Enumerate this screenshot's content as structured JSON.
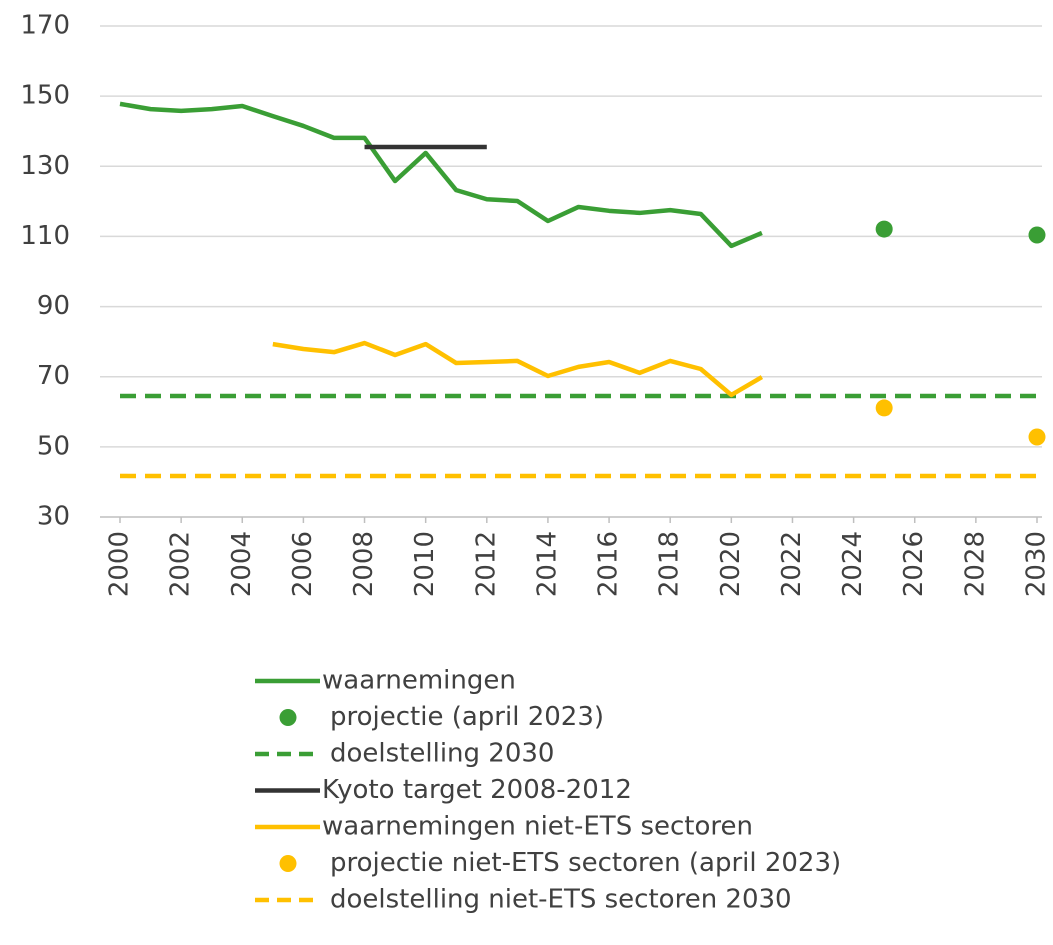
{
  "chart_data": {
    "type": "line",
    "xlim": [
      2000,
      2030
    ],
    "xticks": [
      2000,
      2002,
      2004,
      2006,
      2008,
      2010,
      2012,
      2014,
      2016,
      2018,
      2020,
      2022,
      2024,
      2026,
      2028,
      2030
    ],
    "ylim": [
      30,
      170
    ],
    "yticks": [
      30,
      50,
      70,
      90,
      110,
      130,
      150,
      170
    ],
    "grid": true,
    "legend": "bottom",
    "series": [
      {
        "name": "waarnemingen",
        "color": "#3a9e35",
        "style": "line",
        "x": [
          2000,
          2001,
          2002,
          2003,
          2004,
          2005,
          2006,
          2007,
          2008,
          2009,
          2010,
          2011,
          2012,
          2013,
          2014,
          2015,
          2016,
          2017,
          2018,
          2019,
          2020,
          2021
        ],
        "values": [
          147.8,
          146.3,
          145.8,
          146.3,
          147.2,
          144.3,
          141.5,
          138.1,
          138.1,
          125.8,
          133.8,
          123.2,
          120.6,
          120.1,
          114.4,
          118.4,
          117.3,
          116.7,
          117.5,
          116.4,
          107.3,
          111.0
        ]
      },
      {
        "name": "projectie (april 2023)",
        "color": "#3a9e35",
        "style": "scatter",
        "x": [
          2025,
          2030
        ],
        "values": [
          112.1,
          110.4
        ]
      },
      {
        "name": "doelstelling 2030",
        "color": "#3a9e35",
        "style": "dash",
        "x": [
          2000,
          2030
        ],
        "values": [
          64.5,
          64.5
        ]
      },
      {
        "name": "Kyoto target 2008-2012",
        "color": "#333333",
        "style": "line",
        "x": [
          2008,
          2012
        ],
        "values": [
          135.5,
          135.5
        ]
      },
      {
        "name": "waarnemingen niet-ETS sectoren",
        "color": "#ffc000",
        "style": "line",
        "x": [
          2005,
          2006,
          2007,
          2008,
          2009,
          2010,
          2011,
          2012,
          2013,
          2014,
          2015,
          2016,
          2017,
          2018,
          2019,
          2020,
          2021
        ],
        "values": [
          79.3,
          77.9,
          77.0,
          79.6,
          76.2,
          79.3,
          73.9,
          74.2,
          74.5,
          70.2,
          72.8,
          74.2,
          71.1,
          74.5,
          72.2,
          64.8,
          69.9
        ]
      },
      {
        "name": "projectie niet-ETS sectoren (april 2023)",
        "color": "#ffc000",
        "style": "scatter",
        "x": [
          2025,
          2030
        ],
        "values": [
          61.1,
          52.8
        ]
      },
      {
        "name": "doelstelling niet-ETS sectoren 2030",
        "color": "#ffc000",
        "style": "dash",
        "x": [
          2000,
          2030
        ],
        "values": [
          41.7,
          41.7
        ]
      }
    ]
  }
}
